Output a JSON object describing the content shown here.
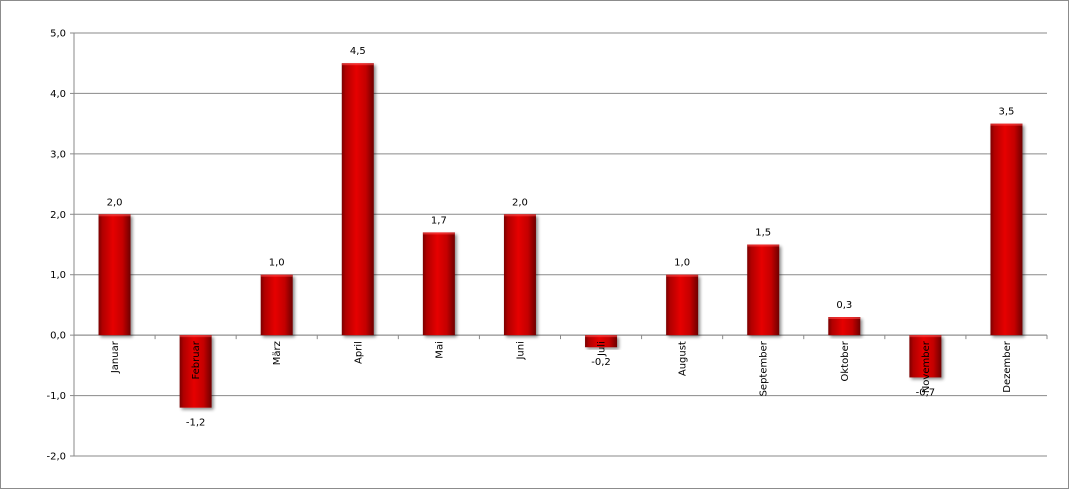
{
  "chart_data": {
    "type": "bar",
    "title": "",
    "xlabel": "",
    "ylabel": "",
    "categories": [
      "Januar",
      "Februar",
      "März",
      "April",
      "Mai",
      "Juni",
      "Juli",
      "August",
      "September",
      "Oktober",
      "November",
      "Dezember"
    ],
    "series": [
      {
        "values": [
          2.0,
          -1.2,
          1.0,
          4.5,
          1.7,
          2.0,
          -0.2,
          1.0,
          1.5,
          0.3,
          -0.7,
          3.5
        ],
        "value_labels": [
          "2,0",
          "-1,2",
          "1,0",
          "4,5",
          "1,7",
          "2,0",
          "-0,2",
          "1,0",
          "1,5",
          "0,3",
          "-0,7",
          "3,5"
        ],
        "color": "#cc0000"
      }
    ],
    "ylim": [
      -2.0,
      5.0
    ],
    "yticks": [
      -2.0,
      -1.0,
      0.0,
      1.0,
      2.0,
      3.0,
      4.0,
      5.0
    ],
    "ytick_labels": [
      "-2,0",
      "-1,0",
      "0,0",
      "1,0",
      "2,0",
      "3,0",
      "4,0",
      "5,0"
    ],
    "grid": true,
    "legend": "none",
    "category_label_orientation": "vertical"
  }
}
